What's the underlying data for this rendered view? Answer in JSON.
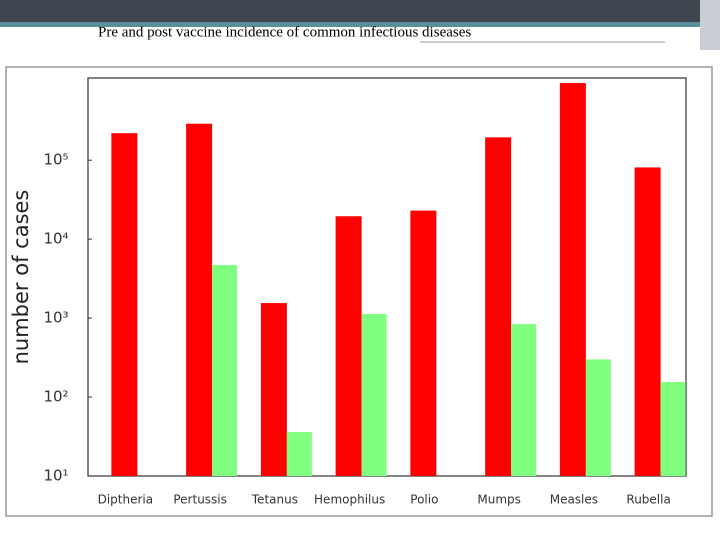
{
  "chart_data": {
    "type": "bar",
    "title": "Pre and post vaccine incidence of common infectious diseases",
    "y_label": "number of cases",
    "categories": [
      "Diptheria",
      "Pertussis",
      "Tetanus",
      "Hemophilus",
      "Polio",
      "Mumps",
      "Measles",
      "Rubella"
    ],
    "series": [
      {
        "color": "#ff0000",
        "values": [
          220000,
          290000,
          1550,
          19500,
          23000,
          195000,
          950000,
          81000
        ]
      },
      {
        "color": "#80ff80",
        "values": [
          null,
          4700,
          36,
          1130,
          null,
          840,
          300,
          155
        ]
      }
    ],
    "log_scale": true,
    "ylim": [
      10,
      1100000
    ],
    "yticks": [
      {
        "value": 10,
        "label": "10¹"
      },
      {
        "value": 100,
        "label": "10²"
      },
      {
        "value": 1000,
        "label": "10³"
      },
      {
        "value": 10000,
        "label": "10⁴"
      },
      {
        "value": 100000,
        "label": "10⁵"
      }
    ]
  }
}
